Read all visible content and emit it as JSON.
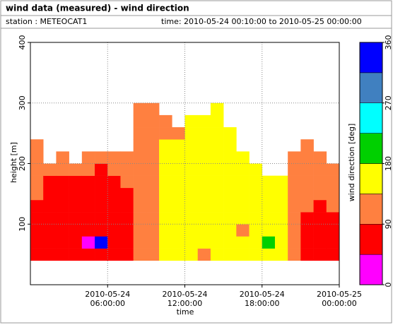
{
  "chart_data": {
    "type": "heatmap",
    "title": "wind data (measured) - wind direction",
    "station": "station : METEOCAT1",
    "time_range": "time: 2010-05-24 00:10:00 to 2010-05-25 00:00:00",
    "xlabel": "time",
    "ylabel": "height [m]",
    "zlabel": "wind direction [deg]",
    "xlim": [
      "2010-05-24 00:00:00",
      "2010-05-25 00:00:00"
    ],
    "xticks": [
      {
        "value": "2010-05-24 06:00:00",
        "label": "2010-05-24 06:00:00"
      },
      {
        "value": "2010-05-24 12:00:00",
        "label": "2010-05-24 12:00:00"
      },
      {
        "value": "2010-05-24 18:00:00",
        "label": "2010-05-24 18:00:00"
      },
      {
        "value": "2010-05-25 00:00:00",
        "label": "2010-05-25 00:00:00"
      }
    ],
    "ylim": [
      0,
      400
    ],
    "yticks": [
      100,
      200,
      300,
      400
    ],
    "grid": true,
    "x_bins": [
      "2010-05-24 00:00:00",
      "2010-05-24 01:00:00",
      "2010-05-24 02:00:00",
      "2010-05-24 03:00:00",
      "2010-05-24 04:00:00",
      "2010-05-24 05:00:00",
      "2010-05-24 06:00:00",
      "2010-05-24 07:00:00",
      "2010-05-24 08:00:00",
      "2010-05-24 09:00:00",
      "2010-05-24 10:00:00",
      "2010-05-24 11:00:00",
      "2010-05-24 12:00:00",
      "2010-05-24 13:00:00",
      "2010-05-24 14:00:00",
      "2010-05-24 15:00:00",
      "2010-05-24 16:00:00",
      "2010-05-24 17:00:00",
      "2010-05-24 18:00:00",
      "2010-05-24 19:00:00",
      "2010-05-24 20:00:00",
      "2010-05-24 21:00:00",
      "2010-05-24 22:00:00",
      "2010-05-24 23:00:00",
      "2010-05-25 00:00:00"
    ],
    "y_bins": [
      40,
      60,
      80,
      100,
      120,
      140,
      160,
      180,
      200,
      220,
      240,
      260,
      280,
      300,
      320
    ],
    "z": [
      [
        70,
        70,
        70,
        70,
        70,
        115,
        115,
        115,
        115,
        115,
        null,
        null,
        null,
        null
      ],
      [
        70,
        70,
        70,
        70,
        70,
        70,
        70,
        115,
        null,
        null,
        null,
        null,
        null,
        null
      ],
      [
        70,
        70,
        70,
        70,
        70,
        70,
        70,
        115,
        115,
        null,
        null,
        null,
        null,
        null
      ],
      [
        70,
        70,
        70,
        70,
        70,
        70,
        70,
        115,
        null,
        null,
        null,
        null,
        null,
        null
      ],
      [
        70,
        20,
        70,
        70,
        70,
        70,
        70,
        115,
        115,
        null,
        null,
        null,
        null,
        null
      ],
      [
        70,
        340,
        70,
        70,
        70,
        70,
        70,
        70,
        115,
        null,
        null,
        null,
        null,
        null
      ],
      [
        70,
        70,
        70,
        70,
        70,
        70,
        70,
        115,
        115,
        null,
        null,
        null,
        null,
        null
      ],
      [
        70,
        70,
        70,
        70,
        70,
        70,
        115,
        115,
        115,
        null,
        null,
        null,
        null,
        null
      ],
      [
        115,
        115,
        115,
        115,
        115,
        115,
        115,
        115,
        115,
        115,
        115,
        115,
        115,
        null
      ],
      [
        115,
        115,
        115,
        115,
        115,
        115,
        115,
        115,
        115,
        115,
        115,
        115,
        115,
        null
      ],
      [
        155,
        155,
        155,
        155,
        155,
        155,
        155,
        155,
        155,
        155,
        115,
        115,
        null,
        null
      ],
      [
        155,
        155,
        155,
        155,
        155,
        155,
        155,
        155,
        155,
        155,
        115,
        null,
        null,
        null
      ],
      [
        155,
        155,
        155,
        155,
        155,
        155,
        155,
        155,
        155,
        155,
        155,
        155,
        null,
        null
      ],
      [
        115,
        155,
        155,
        155,
        155,
        155,
        155,
        155,
        155,
        155,
        155,
        155,
        null,
        null
      ],
      [
        155,
        155,
        155,
        155,
        155,
        155,
        155,
        155,
        155,
        155,
        155,
        155,
        155,
        null
      ],
      [
        155,
        155,
        155,
        155,
        155,
        155,
        155,
        155,
        155,
        155,
        155,
        null,
        null,
        null
      ],
      [
        155,
        155,
        115,
        155,
        155,
        155,
        155,
        155,
        155,
        null,
        null,
        null,
        null,
        null
      ],
      [
        155,
        155,
        155,
        155,
        155,
        155,
        155,
        155,
        null,
        null,
        null,
        null,
        null,
        null
      ],
      [
        155,
        200,
        155,
        155,
        155,
        155,
        155,
        null,
        null,
        null,
        null,
        null,
        null,
        null
      ],
      [
        155,
        155,
        155,
        155,
        155,
        155,
        155,
        null,
        null,
        null,
        null,
        null,
        null,
        null
      ],
      [
        115,
        115,
        115,
        115,
        115,
        115,
        115,
        115,
        115,
        null,
        null,
        null,
        null,
        null
      ],
      [
        70,
        70,
        70,
        70,
        115,
        115,
        115,
        115,
        115,
        115,
        null,
        null,
        null,
        null
      ],
      [
        70,
        70,
        70,
        70,
        70,
        115,
        115,
        115,
        115,
        null,
        null,
        null,
        null,
        null
      ],
      [
        70,
        70,
        70,
        70,
        115,
        115,
        115,
        115,
        null,
        null,
        null,
        null,
        null,
        null
      ]
    ],
    "zlim": [
      0,
      360
    ],
    "zticks": [
      0,
      90,
      180,
      270,
      360
    ],
    "color_levels": [
      0,
      45,
      90,
      135,
      180,
      225,
      270,
      315,
      360
    ],
    "colors": [
      "#ff00ff",
      "#ff0000",
      "#ff8040",
      "#ffff00",
      "#00d000",
      "#00ffff",
      "#4080c0",
      "#0000ff"
    ]
  }
}
